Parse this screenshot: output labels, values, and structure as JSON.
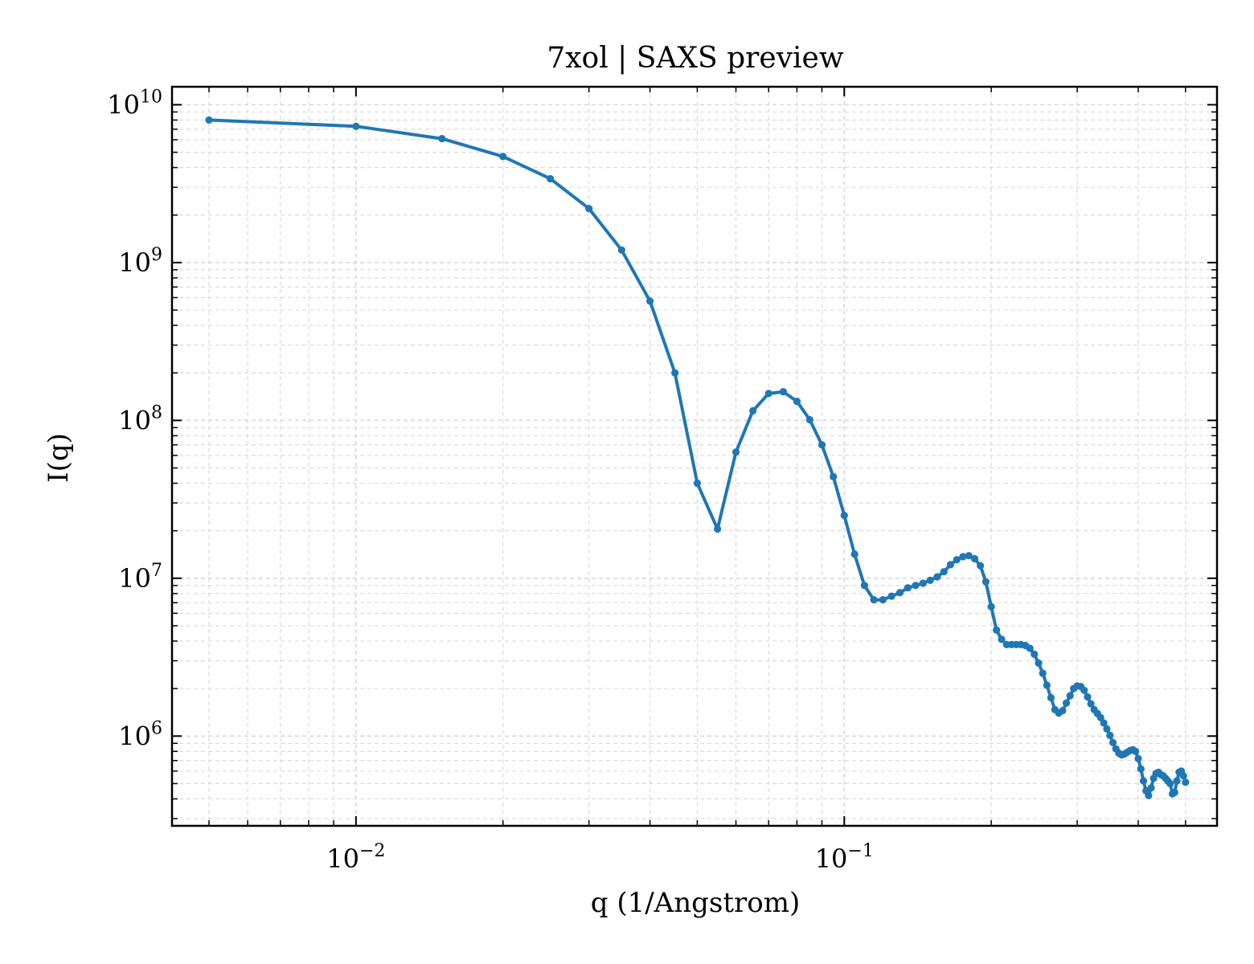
{
  "chart_data": {
    "type": "line",
    "title": "7xol | SAXS preview",
    "xlabel": "q (1/Angstrom)",
    "ylabel": "I(q)",
    "xscale": "log",
    "yscale": "log",
    "xlim": [
      0.0042,
      0.58
    ],
    "ylim": [
      270000,
      13000000000
    ],
    "grid": true,
    "legend": "none",
    "colors": {
      "series": "#1f77b4",
      "grid": "#d9d9d9",
      "axis": "#000000"
    },
    "xticks": [
      {
        "base": "10",
        "exp": "−2",
        "value": 0.01
      },
      {
        "base": "10",
        "exp": "−1",
        "value": 0.1
      }
    ],
    "yticks": [
      {
        "base": "10",
        "exp": "6",
        "value": 1000000
      },
      {
        "base": "10",
        "exp": "7",
        "value": 10000000
      },
      {
        "base": "10",
        "exp": "8",
        "value": 100000000
      },
      {
        "base": "10",
        "exp": "9",
        "value": 1000000000
      },
      {
        "base": "10",
        "exp": "10",
        "value": 10000000000
      }
    ],
    "series": [
      {
        "x": [
          0.005,
          0.01,
          0.015,
          0.02,
          0.025,
          0.03,
          0.035,
          0.04,
          0.045,
          0.05,
          0.055,
          0.06,
          0.065,
          0.07,
          0.075,
          0.08,
          0.085,
          0.09,
          0.095,
          0.1,
          0.105,
          0.11,
          0.115,
          0.12,
          0.125,
          0.13,
          0.135,
          0.14,
          0.145,
          0.15,
          0.155,
          0.16,
          0.165,
          0.17,
          0.175,
          0.18,
          0.185,
          0.19,
          0.195,
          0.2,
          0.205,
          0.21,
          0.215,
          0.22,
          0.225,
          0.23,
          0.235,
          0.24,
          0.245,
          0.25,
          0.255,
          0.26,
          0.265,
          0.27,
          0.275,
          0.28,
          0.285,
          0.29,
          0.295,
          0.3,
          0.305,
          0.31,
          0.315,
          0.32,
          0.325,
          0.33,
          0.335,
          0.34,
          0.345,
          0.35,
          0.355,
          0.36,
          0.365,
          0.37,
          0.375,
          0.38,
          0.385,
          0.39,
          0.395,
          0.4,
          0.405,
          0.41,
          0.415,
          0.42,
          0.425,
          0.43,
          0.435,
          0.44,
          0.445,
          0.45,
          0.455,
          0.46,
          0.465,
          0.47,
          0.475,
          0.48,
          0.485,
          0.49,
          0.495,
          0.5
        ],
        "y": [
          8000000000,
          7300000000,
          6100000000,
          4700000000,
          3400000000,
          2200000000,
          1200000000,
          570000000,
          200000000,
          40000000,
          20500000,
          63000000,
          115000000,
          148000000,
          152000000,
          132000000,
          101000000,
          70000000,
          44000000,
          25000000,
          14200000,
          9000000,
          7300000,
          7300000,
          7700000,
          8100000,
          8700000,
          9000000,
          9300000,
          9700000,
          10200000,
          11000000,
          12200000,
          13100000,
          13700000,
          13900000,
          13300000,
          12000000,
          9500000,
          6600000,
          4700000,
          4100000,
          3800000,
          3800000,
          3800000,
          3800000,
          3750000,
          3600000,
          3300000,
          2900000,
          2500000,
          2100000,
          1750000,
          1470000,
          1400000,
          1450000,
          1620000,
          1800000,
          2000000,
          2080000,
          2060000,
          1950000,
          1770000,
          1600000,
          1470000,
          1390000,
          1310000,
          1210000,
          1110000,
          1010000,
          910000,
          830000,
          780000,
          760000,
          770000,
          790000,
          810000,
          820000,
          800000,
          720000,
          620000,
          520000,
          450000,
          420000,
          470000,
          540000,
          580000,
          590000,
          570000,
          560000,
          540000,
          520000,
          500000,
          430000,
          440000,
          520000,
          590000,
          600000,
          560000,
          510000
        ]
      }
    ]
  }
}
